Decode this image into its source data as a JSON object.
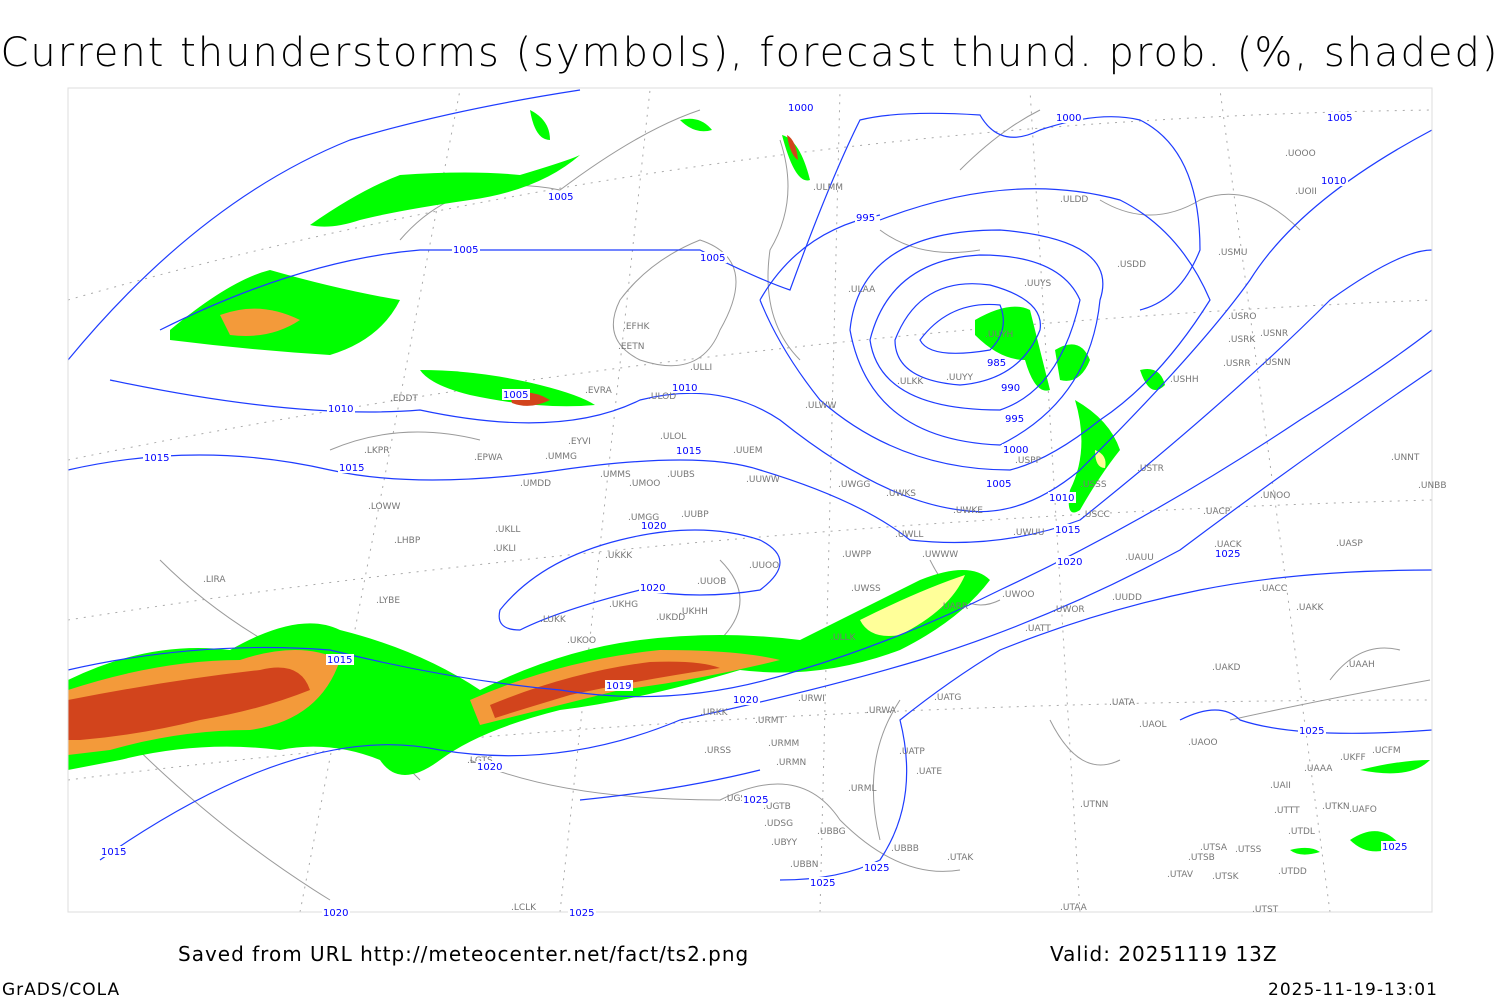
{
  "title": "Current thunderstorms (symbols), forecast thund. prob. (%, shaded)",
  "footer": {
    "source": "Saved from URL http://meteocenter.net/fact/ts2.png",
    "valid": "Valid: 20251119 13Z",
    "software": "GrADS/COLA",
    "timestamp": "2025-11-19-13:01"
  },
  "colors": {
    "isobar": "#1e3cff",
    "coastline": "#9a9a9a",
    "prob_low": "#00ff00",
    "prob_mid": "#ffff99",
    "prob_high": "#f39a3a",
    "prob_max": "#d2441c"
  },
  "stations": [
    "ULMM",
    "ULDD",
    "USDD",
    "USMU",
    "UOII",
    "UOOO",
    "ULAA",
    "UUYS",
    "UUYH",
    "ULKK",
    "UUYY",
    "USRK",
    "USRO",
    "USNR",
    "USRR",
    "USNN",
    "USHH",
    "EFHK",
    "EETN",
    "EVRA",
    "ULLI",
    "EYVI",
    "UMMG",
    "ULOL",
    "ULWW",
    "EDDT",
    "ULOD",
    "EPWA",
    "LKPR",
    "UMMS",
    "UMOO",
    "UUBS",
    "UUEM",
    "UUWW",
    "UMDD",
    "UWGG",
    "UWKS",
    "USTR",
    "USSS",
    "UNNT",
    "UNBB",
    "UNOO",
    "UACP",
    "UACK",
    "UASP",
    "LOWW",
    "UKLL",
    "UKLI",
    "UMGG",
    "UUBP",
    "UWKE",
    "UWLL",
    "UWUU",
    "UWWW",
    "UWPP",
    "UKKK",
    "UUOO",
    "UAUU",
    "LHBP",
    "LIRA",
    "LYBE",
    "UUOB",
    "UKHG",
    "UKDD",
    "UKHH",
    "UWSS",
    "UARR",
    "UWOO",
    "UWOR",
    "UACC",
    "UAKK",
    "LUKK",
    "UATT",
    "UKOO",
    "UAKD",
    "UAAH",
    "URWI",
    "URWA",
    "UATG",
    "UATA",
    "UAOL",
    "UAOO",
    "URKK",
    "URMT",
    "URSS",
    "URMM",
    "URMN",
    "UATP",
    "UATE",
    "URML",
    "UTNN",
    "LGTS",
    "UGSB",
    "UGTB",
    "UDSG",
    "UBBG",
    "UBYY",
    "UBBN",
    "UBBB",
    "UTAK",
    "UTSA",
    "UTSS",
    "UTSB",
    "UTDL",
    "UTTT",
    "UTKN",
    "UAFO",
    "UAII",
    "UAAA",
    "UCFM",
    "UTAV",
    "UTSK",
    "UTDD",
    "UTST",
    "UTAA",
    "LCLK",
    "UKFF",
    "UUDD",
    "ULLK",
    "USPP",
    "USCC"
  ],
  "isobar_labels": [
    "1000",
    "1000",
    "1005",
    "1010",
    "1005",
    "995",
    "1005",
    "1005",
    "985",
    "990",
    "1005",
    "995",
    "1010",
    "1010",
    "1000",
    "1015",
    "1015",
    "1015",
    "1005",
    "1010",
    "1015",
    "1020",
    "1020",
    "1025",
    "1020",
    "1015",
    "1019",
    "1020",
    "1020",
    "1025",
    "1025",
    "1025",
    "1025",
    "1015",
    "1025",
    "1020",
    "1025"
  ]
}
